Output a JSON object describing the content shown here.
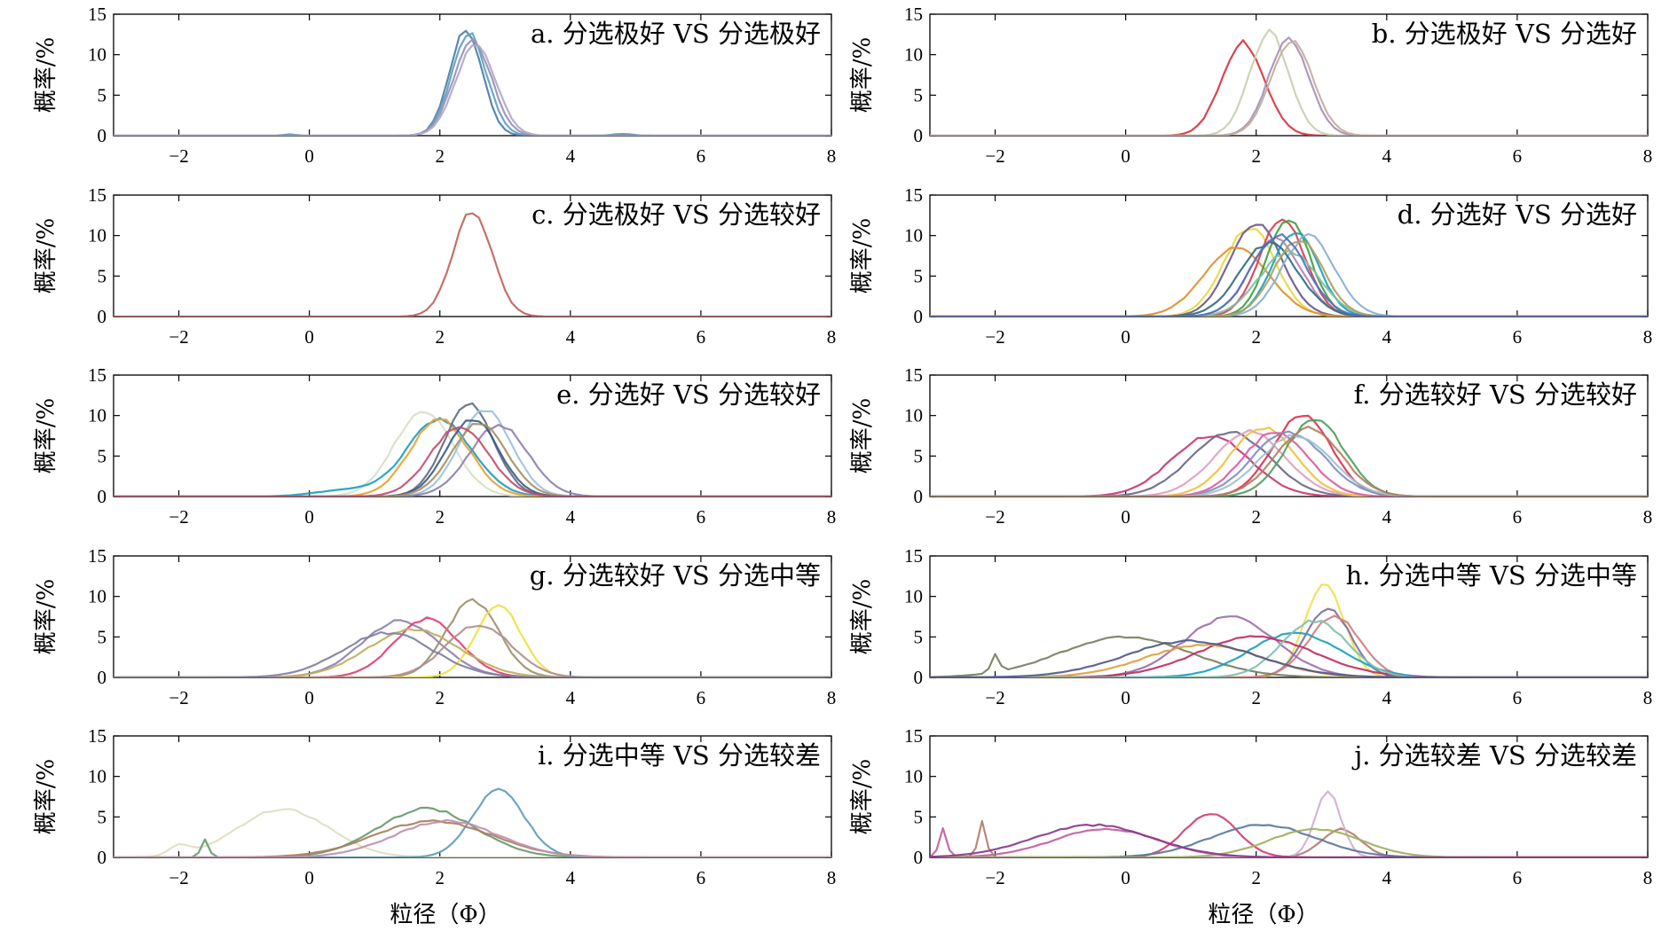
{
  "chart_data": [
    {
      "id": "a",
      "type": "line",
      "title": "a. 分选极好 VS 分选极好",
      "ylabel": "概率/%",
      "xlabel": "",
      "xlim": [
        -3,
        8
      ],
      "ylim": [
        0,
        15
      ],
      "xticks": [
        "−2",
        "0",
        "2",
        "4",
        "6",
        "8"
      ],
      "yticks": [
        "0",
        "5",
        "10",
        "15"
      ],
      "series": [
        {
          "color": "#4a7fa7",
          "curve": [
            [
              2.4,
              0.25,
              13.0
            ]
          ],
          "bumps": [
            [
              4.8,
              0.15,
              0.2
            ],
            [
              -0.3,
              0.1,
              0.15
            ]
          ]
        },
        {
          "color": "#5f9fc0",
          "curve": [
            [
              2.45,
              0.27,
              12.5
            ]
          ]
        },
        {
          "color": "#9a8fb8",
          "curve": [
            [
              2.5,
              0.29,
              11.8
            ]
          ]
        },
        {
          "color": "#b0a8c8",
          "curve": [
            [
              2.55,
              0.3,
              11.5
            ]
          ]
        }
      ]
    },
    {
      "id": "b",
      "type": "line",
      "title": "b. 分选极好 VS 分选好",
      "ylabel": "概率/%",
      "xlabel": "",
      "xlim": [
        -3,
        8
      ],
      "ylim": [
        0,
        15
      ],
      "xticks": [
        "−2",
        "0",
        "2",
        "4",
        "6",
        "8"
      ],
      "yticks": [
        "0",
        "5",
        "10",
        "15"
      ],
      "series": [
        {
          "color": "#d9333f",
          "curve": [
            [
              1.8,
              0.33,
              11.5
            ]
          ]
        },
        {
          "color": "#c8d0b0",
          "curve": [
            [
              2.2,
              0.3,
              12.8
            ]
          ]
        },
        {
          "color": "#a890b8",
          "curve": [
            [
              2.5,
              0.31,
              12.0
            ]
          ]
        },
        {
          "color": "#c0b0a0",
          "curve": [
            [
              2.55,
              0.32,
              11.8
            ]
          ]
        }
      ]
    },
    {
      "id": "c",
      "type": "line",
      "title": "c. 分选极好 VS 分选较好",
      "ylabel": "概率/%",
      "xlabel": "",
      "xlim": [
        -3,
        8
      ],
      "ylim": [
        0,
        15
      ],
      "xticks": [
        "−2",
        "0",
        "2",
        "4",
        "6",
        "8"
      ],
      "yticks": [
        "0",
        "5",
        "10",
        "15"
      ],
      "series": [
        {
          "color": "#c0645a",
          "curve": [
            [
              2.5,
              0.3,
              13.0
            ]
          ]
        }
      ]
    },
    {
      "id": "d",
      "type": "line",
      "title": "d. 分选好 VS 分选好",
      "ylabel": "概率/%",
      "xlabel": "",
      "xlim": [
        -3,
        8
      ],
      "ylim": [
        0,
        15
      ],
      "xticks": [
        "−2",
        "0",
        "2",
        "4",
        "6",
        "8"
      ],
      "yticks": [
        "0",
        "5",
        "10",
        "15"
      ],
      "series": [
        {
          "color": "#e8d840",
          "curve": [
            [
              1.9,
              0.4,
              11.0
            ]
          ]
        },
        {
          "color": "#6a5a8a",
          "curve": [
            [
              2.0,
              0.4,
              11.5
            ]
          ]
        },
        {
          "color": "#e09030",
          "curve": [
            [
              1.7,
              0.5,
              8.5
            ]
          ]
        },
        {
          "color": "#d84050",
          "curve": [
            [
              2.4,
              0.35,
              12.0
            ]
          ]
        },
        {
          "color": "#40a040",
          "curve": [
            [
              2.5,
              0.33,
              12.0
            ]
          ]
        },
        {
          "color": "#1aa0c0",
          "curve": [
            [
              2.6,
              0.35,
              10.5
            ]
          ]
        },
        {
          "color": "#8ab0d8",
          "curve": [
            [
              2.8,
              0.4,
              10.0
            ]
          ]
        },
        {
          "color": "#c080b0",
          "curve": [
            [
              2.3,
              0.4,
              9.5
            ]
          ]
        },
        {
          "color": "#80c0a0",
          "curve": [
            [
              2.5,
              0.45,
              8.0
            ]
          ]
        },
        {
          "color": "#307080",
          "curve": [
            [
              2.2,
              0.45,
              9.0
            ]
          ]
        },
        {
          "color": "#b0a060",
          "curve": [
            [
              2.65,
              0.38,
              9.5
            ]
          ]
        },
        {
          "color": "#5070c0",
          "curve": [
            [
              2.35,
              0.42,
              10.0
            ]
          ]
        }
      ]
    },
    {
      "id": "e",
      "type": "line",
      "title": "e. 分选好 VS 分选较好",
      "ylabel": "概率/%",
      "xlabel": "",
      "xlim": [
        -3,
        8
      ],
      "ylim": [
        0,
        15
      ],
      "xticks": [
        "−2",
        "0",
        "2",
        "4",
        "6",
        "8"
      ],
      "yticks": [
        "0",
        "5",
        "10",
        "15"
      ],
      "series": [
        {
          "color": "#d8e0c8",
          "curve": [
            [
              1.75,
              0.45,
              10.5
            ]
          ]
        },
        {
          "color": "#1aa0c0",
          "curve": [
            [
              2.0,
              0.5,
              9.5
            ],
            [
              0.6,
              0.5,
              0.8
            ]
          ]
        },
        {
          "color": "#f0a030",
          "curve": [
            [
              2.0,
              0.45,
              9.5
            ]
          ]
        },
        {
          "color": "#607080",
          "curve": [
            [
              2.45,
              0.38,
              11.3
            ]
          ]
        },
        {
          "color": "#a0c0e0",
          "curve": [
            [
              2.7,
              0.4,
              10.8
            ]
          ]
        },
        {
          "color": "#9080b0",
          "curve": [
            [
              2.9,
              0.45,
              8.8
            ]
          ]
        },
        {
          "color": "#405a8a",
          "curve": [
            [
              2.5,
              0.4,
              9.5
            ]
          ]
        },
        {
          "color": "#a89060",
          "curve": [
            [
              2.6,
              0.42,
              9.0
            ]
          ]
        },
        {
          "color": "#c05070",
          "curve": [
            [
              2.3,
              0.45,
              8.5
            ]
          ]
        }
      ]
    },
    {
      "id": "f",
      "type": "line",
      "title": "f. 分选较好 VS 分选较好",
      "ylabel": "概率/%",
      "xlabel": "",
      "xlim": [
        -3,
        8
      ],
      "ylim": [
        0,
        15
      ],
      "xticks": [
        "−2",
        "0",
        "2",
        "4",
        "6",
        "8"
      ],
      "yticks": [
        "0",
        "5",
        "10",
        "15"
      ],
      "series": [
        {
          "color": "#c83870",
          "curve": [
            [
              1.3,
              0.6,
              7.5
            ]
          ]
        },
        {
          "color": "#6a6a8a",
          "curve": [
            [
              1.6,
              0.6,
              8.0
            ]
          ]
        },
        {
          "color": "#e0a0c0",
          "curve": [
            [
              1.9,
              0.55,
              8.0
            ]
          ]
        },
        {
          "color": "#f0c040",
          "curve": [
            [
              2.1,
              0.5,
              8.5
            ]
          ]
        },
        {
          "color": "#e03050",
          "curve": [
            [
              2.7,
              0.45,
              10.0
            ]
          ]
        },
        {
          "color": "#50a060",
          "curve": [
            [
              2.9,
              0.45,
              9.5
            ]
          ]
        },
        {
          "color": "#8090c0",
          "curve": [
            [
              2.5,
              0.55,
              8.0
            ]
          ]
        },
        {
          "color": "#d860a0",
          "curve": [
            [
              2.3,
              0.5,
              8.0
            ]
          ]
        },
        {
          "color": "#a0c0d0",
          "curve": [
            [
              2.6,
              0.55,
              7.5
            ]
          ]
        },
        {
          "color": "#b08060",
          "curve": [
            [
              2.8,
              0.5,
              8.5
            ]
          ]
        }
      ]
    },
    {
      "id": "g",
      "type": "line",
      "title": "g. 分选较好 VS 分选中等",
      "ylabel": "概率/%",
      "xlabel": "",
      "xlim": [
        -3,
        8
      ],
      "ylim": [
        0,
        15
      ],
      "xticks": [
        "−2",
        "0",
        "2",
        "4",
        "6",
        "8"
      ],
      "yticks": [
        "0",
        "5",
        "10",
        "15"
      ],
      "series": [
        {
          "color": "#9080b0",
          "curve": [
            [
              1.4,
              0.6,
              7.0
            ]
          ]
        },
        {
          "color": "#e04070",
          "curve": [
            [
              1.8,
              0.5,
              7.2
            ]
          ]
        },
        {
          "color": "#a09070",
          "curve": [
            [
              2.5,
              0.4,
              9.5
            ]
          ]
        },
        {
          "color": "#f0e040",
          "curve": [
            [
              2.9,
              0.35,
              8.8
            ]
          ]
        },
        {
          "color": "#c0b060",
          "curve": [
            [
              1.6,
              0.7,
              6.0
            ]
          ]
        },
        {
          "color": "#b09090",
          "curve": [
            [
              2.6,
              0.5,
              6.5
            ]
          ]
        },
        {
          "color": "#8080a0",
          "curve": [
            [
              1.2,
              0.7,
              5.5
            ]
          ]
        }
      ]
    },
    {
      "id": "h",
      "type": "line",
      "title": "h. 分选中等 VS 分选中等",
      "ylabel": "概率/%",
      "xlabel": "",
      "xlim": [
        -3,
        8
      ],
      "ylim": [
        0,
        15
      ],
      "xticks": [
        "−2",
        "0",
        "2",
        "4",
        "6",
        "8"
      ],
      "yticks": [
        "0",
        "5",
        "10",
        "15"
      ],
      "series": [
        {
          "color": "#f0e050",
          "curve": [
            [
              3.05,
              0.3,
              11.5
            ]
          ]
        },
        {
          "color": "#8070a0",
          "curve": [
            [
              3.1,
              0.35,
              8.5
            ]
          ]
        },
        {
          "color": "#d08080",
          "curve": [
            [
              3.2,
              0.4,
              7.5
            ]
          ]
        },
        {
          "color": "#7a8060",
          "curve": [
            [
              0.0,
              1.0,
              5.0
            ]
          ],
          "bumps": [
            [
              -2.0,
              0.06,
              2.2
            ]
          ]
        },
        {
          "color": "#1aa0c0",
          "curve": [
            [
              2.6,
              0.7,
              5.5
            ]
          ]
        },
        {
          "color": "#9a70b0",
          "curve": [
            [
              1.6,
              0.7,
              7.5
            ]
          ]
        },
        {
          "color": "#c03060",
          "curve": [
            [
              2.0,
              0.9,
              5.0
            ]
          ]
        },
        {
          "color": "#e0a040",
          "curve": [
            [
              1.2,
              0.9,
              4.0
            ]
          ]
        },
        {
          "color": "#80c0b0",
          "curve": [
            [
              2.9,
              0.5,
              7.0
            ]
          ]
        },
        {
          "color": "#505a8a",
          "curve": [
            [
              1.0,
              1.0,
              4.5
            ]
          ]
        }
      ]
    },
    {
      "id": "i",
      "type": "line",
      "title": "i. 分选中等 VS 分选较差",
      "ylabel": "概率/%",
      "xlabel": "",
      "xlim": [
        -3,
        8
      ],
      "ylim": [
        0,
        15
      ],
      "xticks": [
        "−2",
        "0",
        "2",
        "4",
        "6",
        "8"
      ],
      "yticks": [
        "0",
        "5",
        "10",
        "15"
      ],
      "series": [
        {
          "color": "#e0e0c0",
          "curve": [
            [
              -0.4,
              0.7,
              6.0
            ]
          ],
          "bumps": [
            [
              -2.0,
              0.15,
              1.2
            ]
          ]
        },
        {
          "color": "#6a9a70",
          "curve": [
            [
              1.8,
              0.75,
              6.0
            ]
          ],
          "bumps": [
            [
              -1.6,
              0.06,
              2.2
            ]
          ]
        },
        {
          "color": "#60a0b8",
          "curve": [
            [
              2.9,
              0.4,
              8.3
            ]
          ]
        },
        {
          "color": "#a88060",
          "curve": [
            [
              1.9,
              0.9,
              4.5
            ]
          ]
        },
        {
          "color": "#c090b0",
          "curve": [
            [
              2.1,
              0.8,
              4.5
            ]
          ]
        }
      ]
    },
    {
      "id": "j",
      "type": "line",
      "title": "j. 分选较差 VS 分选较差",
      "ylabel": "概率/%",
      "xlabel": "",
      "xlim": [
        -3,
        8
      ],
      "ylim": [
        0,
        15
      ],
      "xticks": [
        "−2",
        "0",
        "2",
        "4",
        "6",
        "8"
      ],
      "yticks": [
        "0",
        "5",
        "10",
        "15"
      ],
      "series": [
        {
          "color": "#c060a0",
          "curve": [
            [
              -0.3,
              0.8,
              3.5
            ]
          ],
          "bumps": [
            [
              -2.8,
              0.06,
              3.5
            ]
          ]
        },
        {
          "color": "#b08070",
          "curve": [
            [
              3.3,
              0.3,
              3.5
            ]
          ],
          "bumps": [
            [
              -2.2,
              0.06,
              4.5
            ]
          ]
        },
        {
          "color": "#d0b0d0",
          "curve": [
            [
              3.1,
              0.2,
              8.0
            ]
          ]
        },
        {
          "color": "#d04070",
          "curve": [
            [
              1.3,
              0.4,
              5.5
            ]
          ]
        },
        {
          "color": "#5a7aa0",
          "curve": [
            [
              2.1,
              0.8,
              4.0
            ]
          ]
        },
        {
          "color": "#a0b060",
          "curve": [
            [
              2.9,
              0.7,
              3.5
            ]
          ]
        },
        {
          "color": "#8a3a8a",
          "curve": [
            [
              -0.5,
              0.9,
              4.0
            ]
          ]
        }
      ]
    }
  ],
  "figure": {
    "xlabel_left": "粒径（Φ）",
    "xlabel_right": "粒径（Φ）"
  }
}
